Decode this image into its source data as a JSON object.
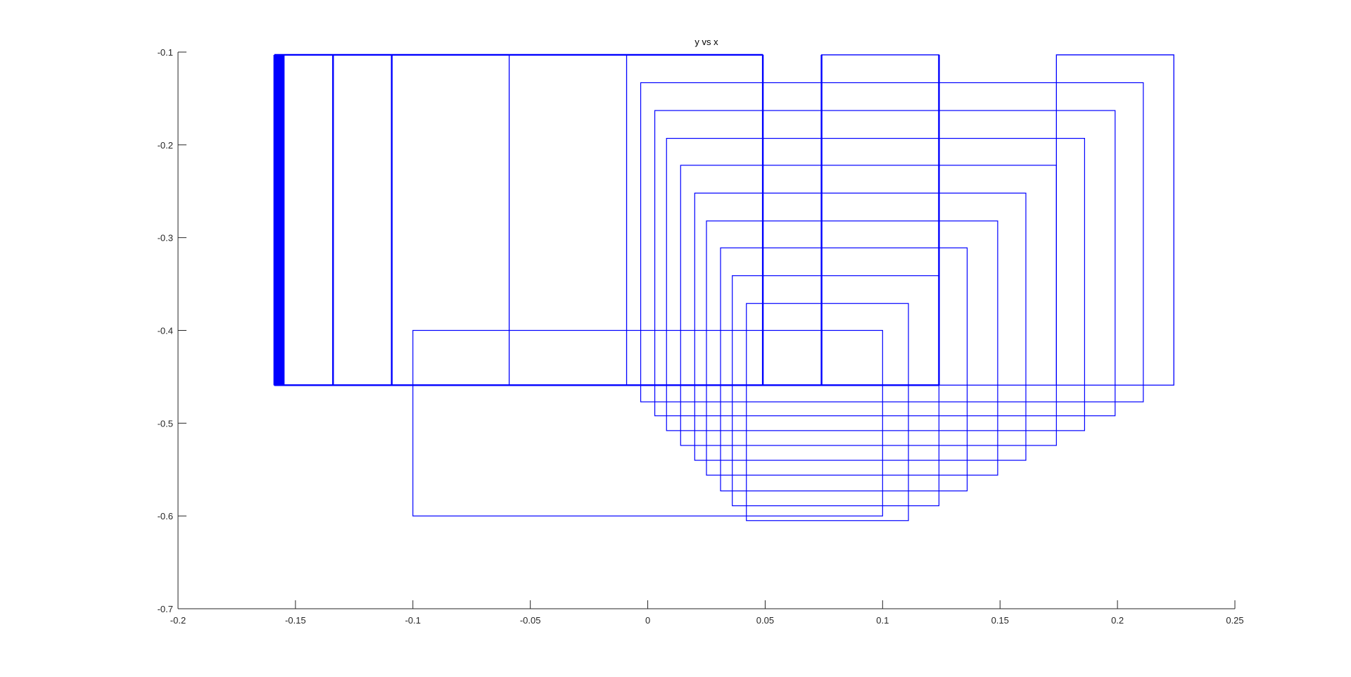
{
  "chart_data": {
    "type": "line",
    "title": "y vs x",
    "xlabel": "",
    "ylabel": "",
    "xlim": [
      -0.2,
      0.25
    ],
    "ylim": [
      -0.7,
      -0.1
    ],
    "xticks": [
      -0.2,
      -0.15,
      -0.1,
      -0.05,
      0,
      0.05,
      0.1,
      0.15,
      0.2,
      0.25
    ],
    "xtick_labels": [
      "-0.2",
      "-0.15",
      "-0.1",
      "-0.05",
      "0",
      "0.05",
      "0.1",
      "0.15",
      "0.2",
      "0.25"
    ],
    "yticks": [
      -0.7,
      -0.6,
      -0.5,
      -0.4,
      -0.3,
      -0.2,
      -0.1
    ],
    "ytick_labels": [
      "-0.7",
      "-0.6",
      "-0.5",
      "-0.4",
      "-0.3",
      "-0.2",
      "-0.1"
    ],
    "grid": false,
    "box": false,
    "colors": {
      "line": "#0000ff",
      "axis": "#262626",
      "background": "#ffffff"
    },
    "series": [
      {
        "values": [
          [
            -0.159,
            -0.103
          ],
          [
            -0.159,
            -0.459
          ],
          [
            -0.155,
            -0.459
          ],
          [
            -0.155,
            -0.103
          ],
          [
            -0.134,
            -0.103
          ],
          [
            -0.134,
            -0.459
          ],
          [
            -0.109,
            -0.459
          ],
          [
            -0.109,
            -0.103
          ],
          [
            -0.059,
            -0.103
          ],
          [
            -0.059,
            -0.459
          ],
          [
            -0.009,
            -0.459
          ],
          [
            -0.009,
            -0.103
          ],
          [
            0.049,
            -0.103
          ],
          [
            0.049,
            -0.459
          ],
          [
            0.074,
            -0.459
          ],
          [
            0.074,
            -0.103
          ],
          [
            0.124,
            -0.103
          ],
          [
            0.124,
            -0.459
          ],
          [
            0.174,
            -0.459
          ],
          [
            0.174,
            -0.103
          ],
          [
            0.224,
            -0.103
          ],
          [
            0.224,
            -0.459
          ],
          [
            -0.159,
            -0.459
          ]
        ]
      },
      {
        "rects": [
          [
            -0.003,
            0.211,
            -0.133,
            -0.477
          ],
          [
            0.003,
            0.199,
            -0.163,
            -0.492
          ],
          [
            0.008,
            0.186,
            -0.193,
            -0.508
          ],
          [
            0.014,
            0.174,
            -0.222,
            -0.524
          ],
          [
            0.02,
            0.161,
            -0.252,
            -0.54
          ],
          [
            0.025,
            0.149,
            -0.282,
            -0.556
          ],
          [
            0.031,
            0.136,
            -0.311,
            -0.573
          ],
          [
            0.036,
            0.124,
            -0.341,
            -0.589
          ],
          [
            0.042,
            0.111,
            -0.371,
            -0.605
          ],
          [
            -0.1,
            0.1,
            -0.4,
            -0.6
          ]
        ]
      },
      {
        "thick_lines": [
          [
            -0.159,
            -0.103,
            -0.159,
            -0.459
          ],
          [
            -0.155,
            -0.103,
            -0.155,
            -0.459
          ],
          [
            -0.134,
            -0.103,
            -0.134,
            -0.459
          ],
          [
            -0.109,
            -0.103,
            -0.109,
            -0.459
          ],
          [
            0.049,
            -0.103,
            0.049,
            -0.459
          ],
          [
            0.074,
            -0.103,
            0.074,
            -0.459
          ],
          [
            0.124,
            -0.103,
            0.124,
            -0.459
          ],
          [
            -0.159,
            -0.103,
            0.049,
            -0.103
          ],
          [
            -0.159,
            -0.459,
            0.124,
            -0.459
          ]
        ]
      }
    ]
  }
}
